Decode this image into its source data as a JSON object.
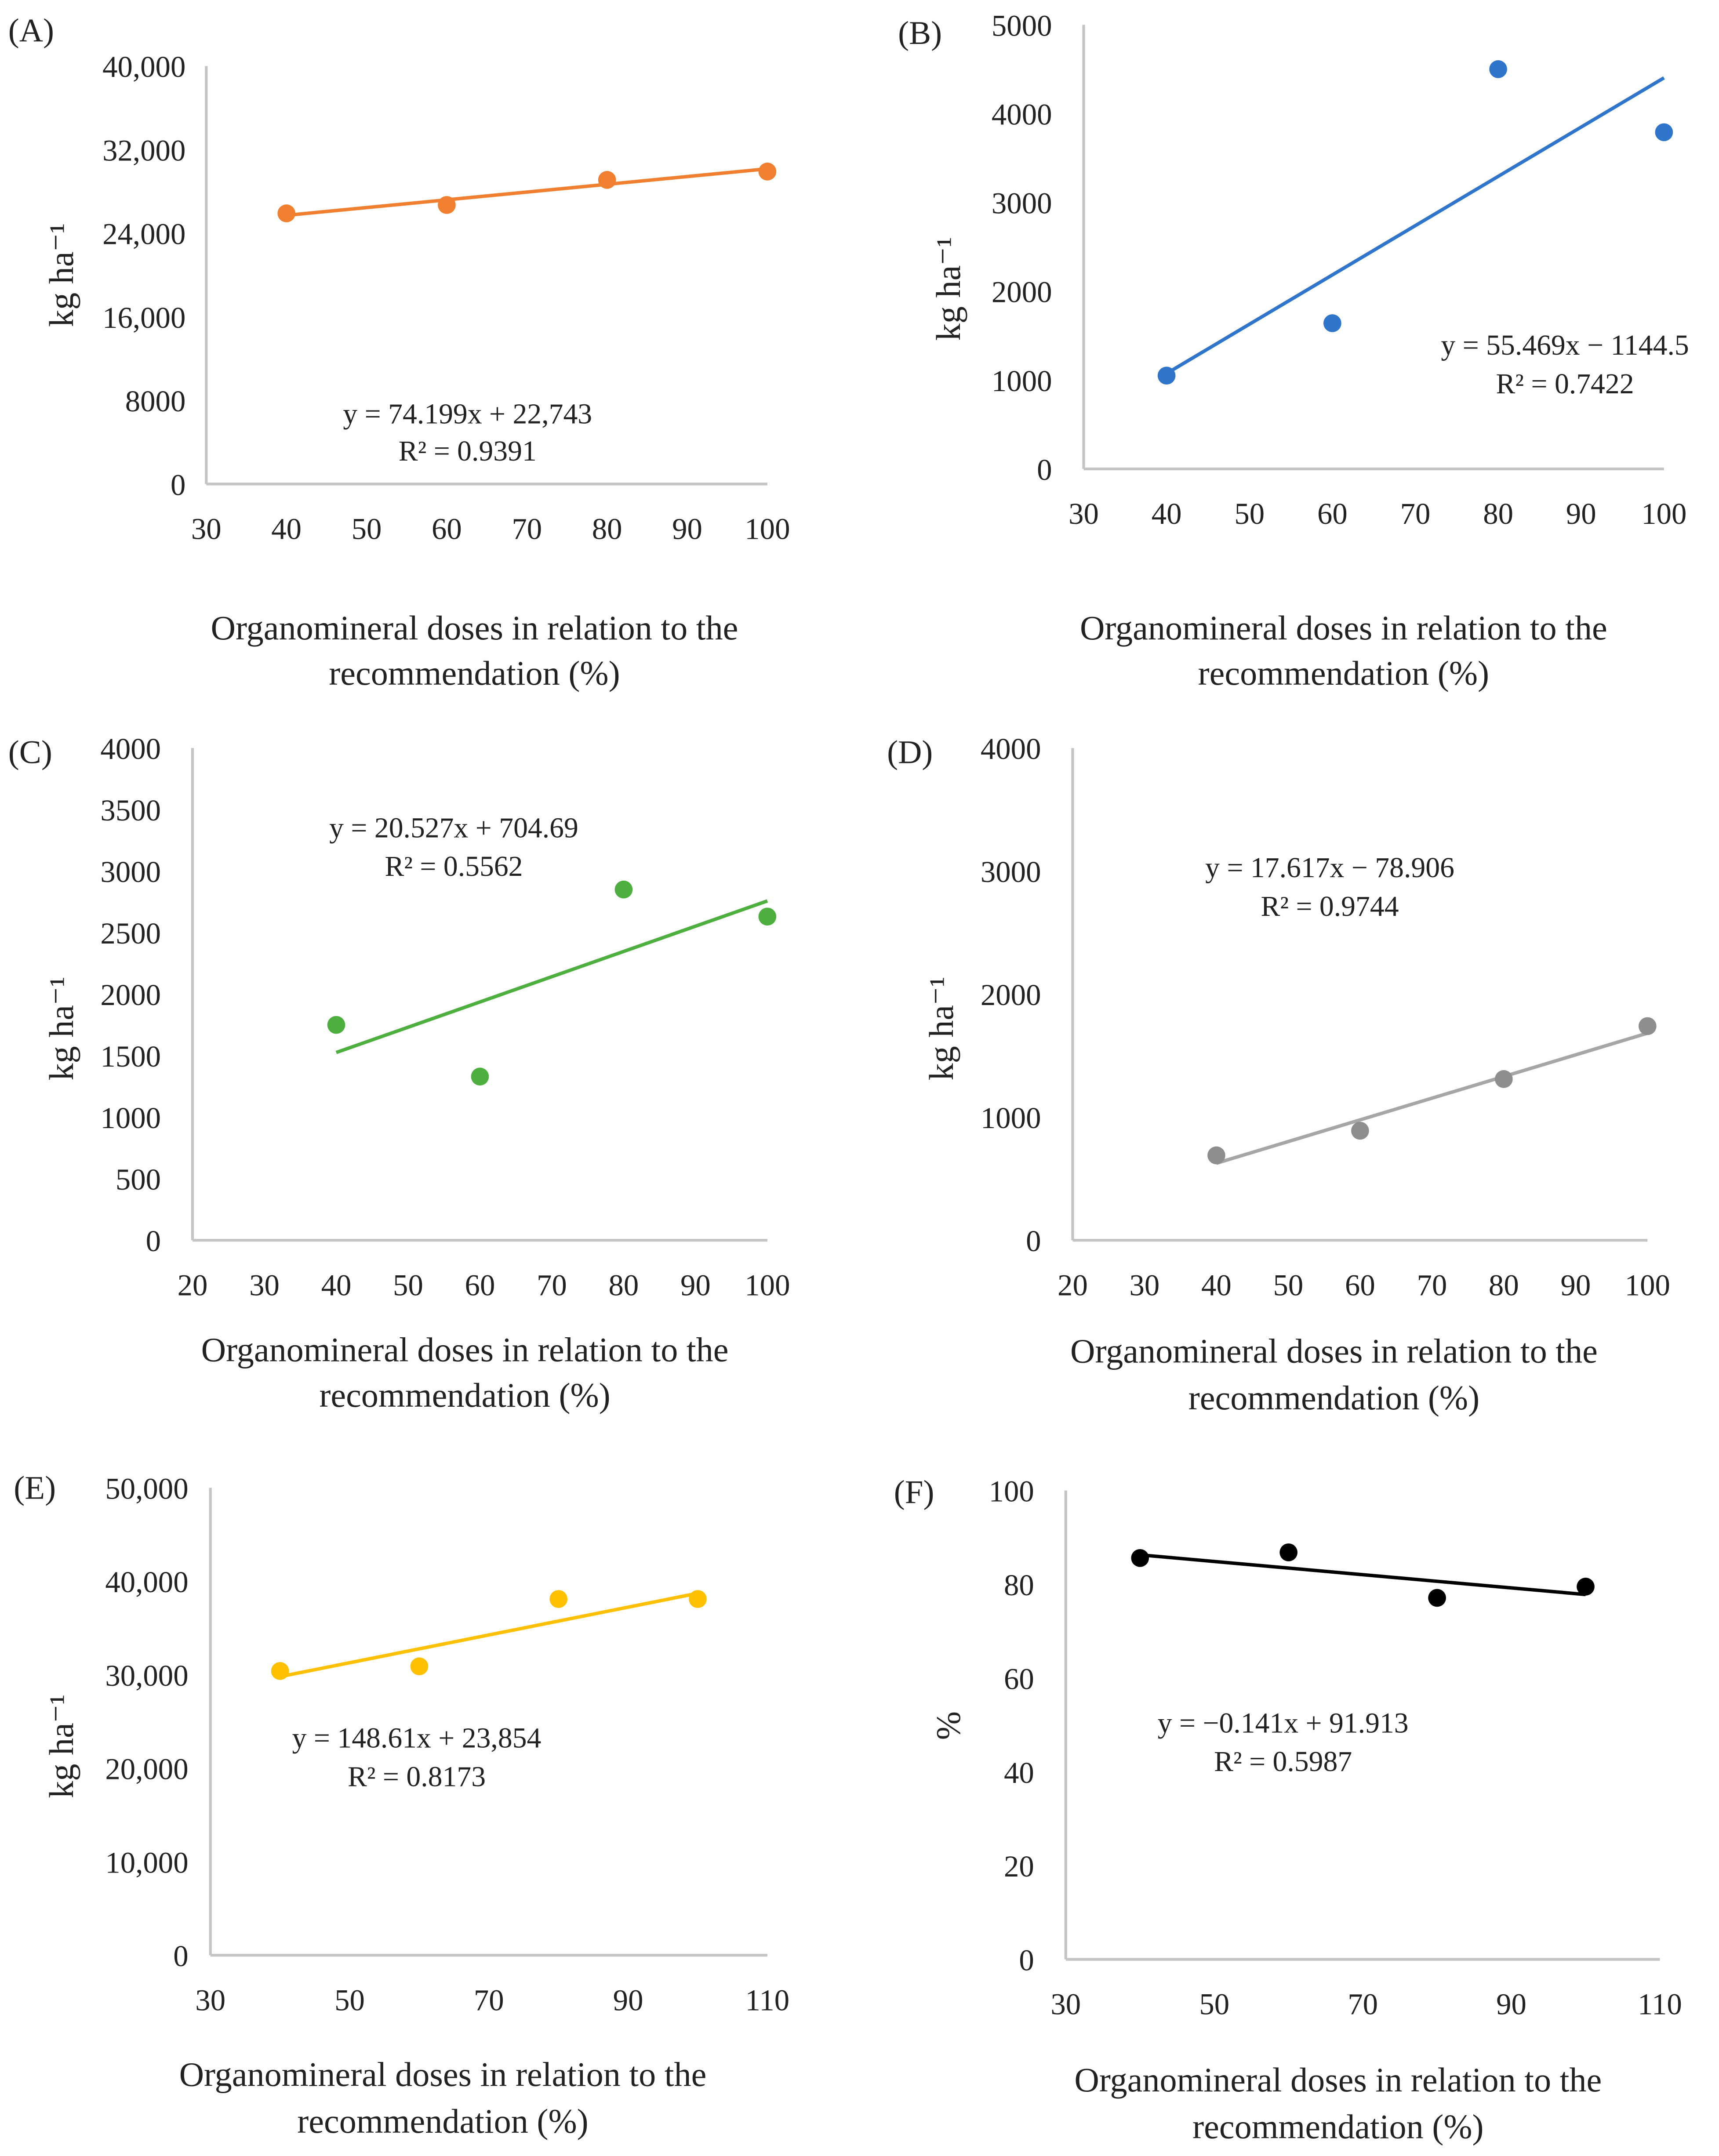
{
  "x_axis_title": [
    "Organomineral doses in relation to the",
    "recommendation (%)"
  ],
  "chart_data": [
    {
      "panel": "(A)",
      "type": "scatter",
      "color": "#F07F2F",
      "ylabel": "kg ha⁻¹",
      "x": [
        40,
        60,
        80,
        100
      ],
      "y": [
        25900,
        26700,
        29100,
        29900
      ],
      "xlim": [
        30,
        100
      ],
      "xticks": [
        "30",
        "40",
        "50",
        "60",
        "70",
        "80",
        "90",
        "100"
      ],
      "ylim": [
        0,
        40000
      ],
      "yticks": [
        "0",
        "8000",
        "16,000",
        "24,000",
        "32,000",
        "40,000"
      ],
      "trend": {
        "slope": 74.199,
        "intercept": 22743,
        "equation": "y = 74.199x + 22,743",
        "r2": "R² = 0.9391"
      }
    },
    {
      "panel": "(B)",
      "type": "scatter",
      "color": "#2F75CC",
      "ylabel": "kg ha⁻¹",
      "x": [
        40,
        60,
        80,
        100
      ],
      "y": [
        1050,
        1640,
        4500,
        3790
      ],
      "xlim": [
        30,
        100
      ],
      "xticks": [
        "30",
        "40",
        "50",
        "60",
        "70",
        "80",
        "90",
        "100"
      ],
      "ylim": [
        0,
        5000
      ],
      "yticks": [
        "0",
        "1000",
        "2000",
        "3000",
        "4000",
        "5000"
      ],
      "trend": {
        "slope": 55.469,
        "intercept": -1144.5,
        "equation": "y = 55.469x − 1144.5",
        "r2": "R² = 0.7422"
      }
    },
    {
      "panel": "(C)",
      "type": "scatter",
      "color": "#4DAF3E",
      "ylabel": "kg ha⁻¹",
      "x": [
        40,
        60,
        80,
        100
      ],
      "y": [
        1750,
        1330,
        2850,
        2630
      ],
      "xlim": [
        20,
        100
      ],
      "xticks": [
        "20",
        "30",
        "40",
        "50",
        "60",
        "70",
        "80",
        "90",
        "100"
      ],
      "ylim": [
        0,
        4000
      ],
      "yticks": [
        "0",
        "500",
        "1000",
        "1500",
        "2000",
        "2500",
        "3000",
        "3500",
        "4000"
      ],
      "trend": {
        "slope": 20.527,
        "intercept": 704.69,
        "equation": "y = 20.527x + 704.69",
        "r2": "R² = 0.5562"
      }
    },
    {
      "panel": "(D)",
      "type": "scatter",
      "color": "#8E8E8E",
      "line_color": "#A6A6A6",
      "ylabel": "kg ha⁻¹",
      "x": [
        40,
        60,
        80,
        100
      ],
      "y": [
        690,
        890,
        1310,
        1740
      ],
      "xlim": [
        20,
        100
      ],
      "xticks": [
        "20",
        "30",
        "40",
        "50",
        "60",
        "70",
        "80",
        "90",
        "100"
      ],
      "ylim": [
        0,
        4000
      ],
      "yticks": [
        "0",
        "1000",
        "2000",
        "3000",
        "4000"
      ],
      "trend": {
        "slope": 17.617,
        "intercept": -78.906,
        "equation": "y = 17.617x − 78.906",
        "r2": "R² = 0.9744"
      }
    },
    {
      "panel": "(E)",
      "type": "scatter",
      "color": "#FFC000",
      "ylabel": "kg ha⁻¹",
      "x": [
        40,
        60,
        80,
        100
      ],
      "y": [
        30400,
        30900,
        38100,
        38100
      ],
      "xlim": [
        30,
        110
      ],
      "xticks": [
        "30",
        "50",
        "70",
        "90",
        "110"
      ],
      "ylim": [
        0,
        50000
      ],
      "yticks": [
        "0",
        "10,000",
        "20,000",
        "30,000",
        "40,000",
        "50,000"
      ],
      "trend": {
        "slope": 148.61,
        "intercept": 23854,
        "equation": "y = 148.61x + 23,854",
        "r2": "R² = 0.8173"
      }
    },
    {
      "panel": "(F)",
      "type": "scatter",
      "color": "#000000",
      "ylabel": "%",
      "x": [
        40,
        60,
        80,
        100
      ],
      "y": [
        85.6,
        86.8,
        77.1,
        79.5
      ],
      "xlim": [
        30,
        110
      ],
      "xticks": [
        "30",
        "50",
        "70",
        "90",
        "110"
      ],
      "ylim": [
        0,
        100
      ],
      "yticks": [
        "0",
        "20",
        "40",
        "60",
        "80",
        "100"
      ],
      "trend": {
        "slope": -0.141,
        "intercept": 91.913,
        "equation": "y = −0.141x + 91.913",
        "r2": "R² = 0.5987"
      }
    }
  ]
}
